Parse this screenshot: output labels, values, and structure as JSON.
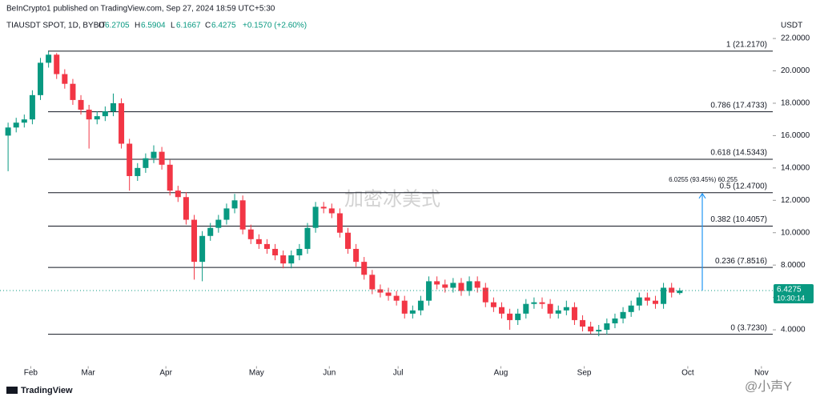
{
  "header": {
    "publisher": "BeInCrypto1 published on TradingView.com, Sep 27, 2024 18:59 UTC+5:30",
    "symbol": "TIAUSDT SPOT, 1D, BYBIT",
    "ohlc_labels": [
      "O",
      "H",
      "L",
      "C"
    ],
    "change": "+0.1570 (+2.60%)"
  },
  "chart_data": {
    "type": "candlestick",
    "categories": [
      null,
      null,
      null,
      null,
      null,
      null,
      null,
      null,
      null,
      null,
      null,
      null,
      null,
      null,
      null,
      null,
      null,
      null,
      null,
      null,
      null,
      null,
      null,
      null,
      null,
      null,
      null,
      null,
      null,
      null,
      null,
      null,
      null,
      null,
      null,
      null,
      null,
      null,
      null,
      null,
      null,
      null,
      null,
      null,
      null,
      null,
      null,
      null,
      null,
      null,
      null,
      null,
      null,
      null,
      null,
      null,
      null,
      null,
      null,
      null,
      null,
      null,
      null,
      null,
      null,
      null,
      null,
      null,
      null,
      null,
      null,
      null,
      null,
      null,
      null,
      null,
      null,
      null,
      null,
      null,
      null,
      null,
      null,
      null
    ],
    "open": [
      16,
      16.5,
      16.8,
      17,
      18.5,
      20.5,
      21,
      19.8,
      19.2,
      18.2,
      17.6,
      17,
      17.2,
      17.5,
      18,
      15.5,
      13.5,
      14,
      14.6,
      15,
      14.2,
      12.6,
      12.2,
      10.8,
      8.2,
      9.8,
      10.3,
      10.8,
      11.5,
      12,
      10.2,
      9.6,
      9.3,
      9,
      8.6,
      8.1,
      8.6,
      9,
      10.3,
      11.6,
      11.5,
      11.2,
      10,
      9,
      8.2,
      7.4,
      6.5,
      6.3,
      6.1,
      5.8,
      5,
      5.2,
      5.8,
      7,
      6.8,
      6.6,
      6.9,
      6.4,
      7,
      6.6,
      5.7,
      5.4,
      5,
      4.6,
      5,
      5.6,
      5.7,
      5.6,
      5,
      5.2,
      5.4,
      4.6,
      4.2,
      3.9,
      4,
      4.4,
      4.7,
      5.1,
      5.5,
      6,
      5.8,
      5.6,
      6.6,
      6.2705
    ],
    "high": [
      16.8,
      17.1,
      17.3,
      18.8,
      20.8,
      21.2,
      21.1,
      20.1,
      19.5,
      18.5,
      17.9,
      17.5,
      17.8,
      18.6,
      18.3,
      15.8,
      14.3,
      14.9,
      15.4,
      15.3,
      14.5,
      12.9,
      12.5,
      11.1,
      10.1,
      10.6,
      11.1,
      11.8,
      12.4,
      12.3,
      10.5,
      9.9,
      9.6,
      9.3,
      8.9,
      8.9,
      9.3,
      10.6,
      11.9,
      11.9,
      11.8,
      11.5,
      10.3,
      9.3,
      8.5,
      7.7,
      6.8,
      6.6,
      6.4,
      6.1,
      5.5,
      6.1,
      7.3,
      7.3,
      7.1,
      7.2,
      7.2,
      7.3,
      7.3,
      6.9,
      6,
      5.7,
      5.3,
      5.3,
      5.9,
      6,
      6,
      5.9,
      5.5,
      5.8,
      5.7,
      4.9,
      4.5,
      4.3,
      4.7,
      5,
      5.4,
      5.8,
      6.3,
      6.3,
      6.1,
      6.9,
      6.9,
      6.5904
    ],
    "low": [
      13.8,
      16.2,
      16.5,
      16.7,
      18.2,
      20.2,
      19.5,
      18.9,
      17.9,
      17.3,
      15.2,
      16.7,
      16.9,
      17.2,
      15.2,
      12.6,
      13.2,
      13.7,
      14.3,
      13.9,
      12.3,
      11.9,
      10.5,
      7.1,
      7,
      9.5,
      10,
      10.5,
      11.2,
      9.9,
      9.3,
      9,
      8.7,
      8.3,
      7.8,
      7.8,
      8.3,
      8.7,
      10,
      11.2,
      10.9,
      9.7,
      8.7,
      7.9,
      7.1,
      6.2,
      6,
      5.8,
      5.5,
      4.7,
      4.7,
      4.9,
      5.5,
      6.5,
      6.3,
      6.3,
      6.1,
      6.1,
      6.3,
      5.4,
      5.1,
      4.7,
      4,
      4.3,
      4.7,
      5.3,
      5.3,
      4.7,
      4.7,
      4.9,
      4.3,
      3.9,
      3.75,
      3.6,
      3.7,
      4.1,
      4.4,
      4.8,
      5.2,
      5.5,
      5.3,
      5.3,
      6,
      6.1667
    ],
    "close": [
      16.5,
      16.8,
      17,
      18.5,
      20.5,
      21,
      19.8,
      19.2,
      18.2,
      17.6,
      17,
      17.2,
      17.5,
      18,
      15.5,
      13.5,
      14,
      14.6,
      15,
      14.2,
      12.6,
      12.2,
      10.8,
      8.2,
      9.8,
      10.3,
      10.8,
      11.5,
      12,
      10.2,
      9.6,
      9.3,
      9,
      8.6,
      8.1,
      8.6,
      9,
      10.3,
      11.6,
      11.5,
      11.2,
      10,
      9,
      8.2,
      7.4,
      6.5,
      6.3,
      6.1,
      5.8,
      5,
      5.2,
      5.8,
      7,
      6.8,
      6.6,
      6.9,
      6.4,
      7,
      6.6,
      5.7,
      5.4,
      5,
      4.6,
      5,
      5.6,
      5.7,
      5.6,
      5,
      5.2,
      5.4,
      4.6,
      4.2,
      3.9,
      4,
      4.4,
      4.7,
      5.1,
      5.5,
      6,
      5.8,
      5.6,
      6.6,
      6.3,
      6.4275
    ],
    "up_color": "#089981",
    "down_color": "#f23645",
    "xlim": [
      -1,
      94.5
    ],
    "xticks": [
      {
        "value": 2.8,
        "label": "Feb"
      },
      {
        "value": 9.9,
        "label": "Mar"
      },
      {
        "value": 19.5,
        "label": "Apr"
      },
      {
        "value": 30.7,
        "label": "May"
      },
      {
        "value": 39.7,
        "label": "Jun"
      },
      {
        "value": 48.2,
        "label": "Jul"
      },
      {
        "value": 60.9,
        "label": "Aug"
      },
      {
        "value": 71.2,
        "label": "Sep"
      },
      {
        "value": 84,
        "label": "Oct"
      },
      {
        "value": 93.1,
        "label": "Nov"
      }
    ],
    "ylim": [
      2,
      22.4
    ],
    "yticks": [
      {
        "value": 4,
        "label": "4.0000"
      },
      {
        "value": 6,
        "label": "6.0000"
      },
      {
        "value": 8,
        "label": "8.0000"
      },
      {
        "value": 10,
        "label": "10.0000"
      },
      {
        "value": 12,
        "label": "12.0000"
      },
      {
        "value": 14,
        "label": "14.0000"
      },
      {
        "value": 16,
        "label": "16.0000"
      },
      {
        "value": 18,
        "label": "18.0000"
      },
      {
        "value": 20,
        "label": "20.0000"
      },
      {
        "value": 22,
        "label": "22.0000"
      }
    ],
    "currency": "USDT",
    "fib_levels": [
      {
        "value": 21.217,
        "label": "1 (21.2170)"
      },
      {
        "value": 17.4733,
        "label": "0.786 (17.4733)"
      },
      {
        "value": 14.5343,
        "label": "0.618 (14.5343)"
      },
      {
        "value": 12.47,
        "label": "0.5 (12.4700)"
      },
      {
        "value": 10.4057,
        "label": "0.382 (10.4057)"
      },
      {
        "value": 7.8516,
        "label": "0.236 (7.8516)"
      },
      {
        "value": 3.723,
        "label": "0 (3.7230)"
      }
    ],
    "annotation": "6.0255 (93.45%) 60.255",
    "countdown": "10:30:14"
  },
  "footer": {
    "brand": "TradingView",
    "watermarks": [
      "加密冰美式",
      "@小声Y"
    ]
  }
}
